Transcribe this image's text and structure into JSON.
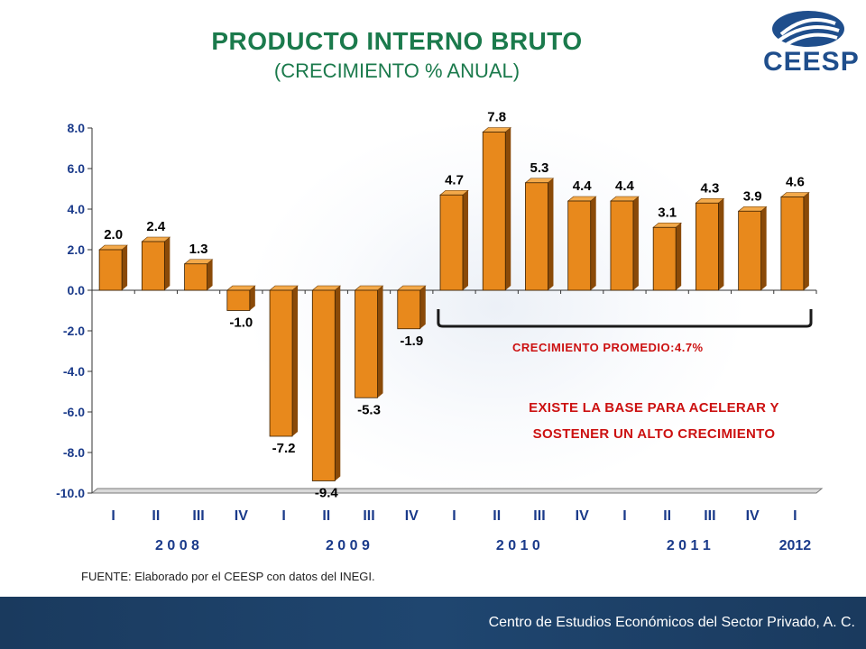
{
  "title": "PRODUCTO INTERNO BRUTO",
  "subtitle": "(CRECIMIENTO % ANUAL)",
  "logo_text": "CEESP",
  "source": "FUENTE: Elaborado por el CEESP con datos del INEGI.",
  "annotation_avg": "CRECIMIENTO  PROMEDIO:4.7%",
  "message_line1": "EXISTE LA BASE PARA ACELERAR Y",
  "message_line2": "SOSTENER UN ALTO CRECIMIENTO",
  "footer": "Centro de Estudios Económicos del Sector Privado, A. C.",
  "colors": {
    "title": "#1b7a4c",
    "bar_front": "#e8891c",
    "bar_top": "#f3a94a",
    "bar_side": "#8a4a08",
    "axis_labels": "#1a3a8a",
    "annotation": "#cc1111",
    "footer_bg": "#1a3a5e"
  },
  "chart_data": {
    "type": "bar",
    "categories": [
      "I",
      "II",
      "III",
      "IV",
      "I",
      "II",
      "III",
      "IV",
      "I",
      "II",
      "III",
      "IV",
      "I",
      "II",
      "III",
      "IV",
      "I"
    ],
    "values": [
      2.0,
      2.4,
      1.3,
      -1.0,
      -7.2,
      -9.4,
      -5.3,
      -1.9,
      4.7,
      7.8,
      5.3,
      4.4,
      4.4,
      3.1,
      4.3,
      3.9,
      4.6
    ],
    "value_labels": [
      "2.0",
      "2.4",
      "1.3",
      "-1.0",
      "-7.2",
      "-9.4",
      "-5.3",
      "-1.9",
      "4.7",
      "7.8",
      "5.3",
      "4.4",
      "4.4",
      "3.1",
      "4.3",
      "3.9",
      "4.6"
    ],
    "year_groups": [
      {
        "label": "2 0 0 8",
        "count": 4
      },
      {
        "label": "2 0 0 9",
        "count": 4
      },
      {
        "label": "2 0 1 0",
        "count": 4
      },
      {
        "label": "2 0 1 1",
        "count": 4
      },
      {
        "label": "2012",
        "count": 1
      }
    ],
    "yticks": [
      "8.0",
      "6.0",
      "4.0",
      "2.0",
      "0.0",
      "-2.0",
      "-4.0",
      "-6.0",
      "-8.0",
      "-10.0"
    ],
    "ylim": [
      -10,
      8
    ],
    "grid": false,
    "bracket_range": [
      8,
      16
    ]
  }
}
